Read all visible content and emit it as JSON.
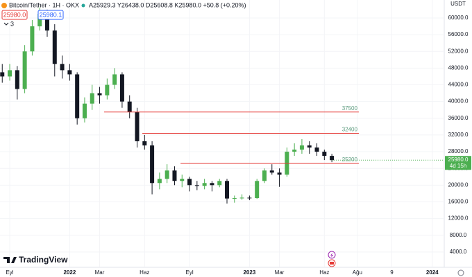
{
  "header": {
    "symbol": "Bitcoin/Tether · 1H · OKX",
    "ohlc": "A25929.3 Y26438.0 D25608.8 K25980.0 +50.8 (+0.20%)",
    "sell": "25980.0",
    "buy": "25980.1",
    "indicators": "3",
    "currency": "USDT",
    "brand": "TradingView"
  },
  "chart_data": {
    "type": "candlestick",
    "up_color": "#4caf50",
    "down_color": "#131722",
    "grid": true,
    "x": [
      -0.5,
      0,
      0.5,
      1,
      1.5,
      2,
      2.5,
      3,
      3.5,
      4,
      4.5,
      5,
      5.5,
      6,
      6.5,
      7,
      7.5,
      8,
      8.5,
      9,
      9.5,
      10,
      10.5,
      11,
      11.5,
      12,
      12.5,
      13,
      13.5,
      14,
      14.5,
      15,
      15.5,
      16,
      16.5,
      17,
      17.5,
      18,
      18.5,
      19,
      19.5,
      20,
      20.5,
      21,
      21.5
    ],
    "open": [
      47000,
      46000,
      47500,
      43000,
      52000,
      58000,
      61000,
      57000,
      49000,
      47500,
      46500,
      36000,
      39500,
      42000,
      41500,
      44000,
      46500,
      40000,
      37500,
      30500,
      29500,
      20500,
      21500,
      23500,
      21000,
      21500,
      20000,
      19800,
      20500,
      20000,
      21000,
      16800,
      16900,
      17000,
      16900,
      21000,
      23500,
      23000,
      22500,
      28000,
      28500,
      29500,
      29000,
      28000,
      27000
    ],
    "high": [
      49000,
      49000,
      48500,
      53500,
      59500,
      62500,
      62000,
      58500,
      51000,
      49000,
      47000,
      41000,
      44000,
      43500,
      45500,
      48000,
      47000,
      41500,
      38500,
      32000,
      30500,
      23000,
      25000,
      24500,
      22500,
      22000,
      21000,
      21500,
      21000,
      21500,
      21500,
      17500,
      17800,
      17500,
      21500,
      24000,
      25000,
      24000,
      29000,
      30000,
      31000,
      30500,
      30000,
      28500,
      27500
    ],
    "low": [
      44500,
      45000,
      40500,
      42000,
      51000,
      57000,
      55500,
      46000,
      45500,
      45000,
      34500,
      35000,
      38000,
      39500,
      40500,
      43000,
      38500,
      36000,
      29000,
      28500,
      17800,
      19000,
      20500,
      20000,
      19500,
      18500,
      18800,
      19000,
      18500,
      19500,
      15600,
      15800,
      16500,
      16400,
      16700,
      20500,
      22500,
      19600,
      22000,
      27000,
      27500,
      27500,
      27000,
      26000,
      25500
    ],
    "close": [
      46000,
      47500,
      43000,
      52000,
      58000,
      61000,
      57000,
      49000,
      47500,
      46500,
      36000,
      39500,
      42000,
      41500,
      44000,
      46500,
      40000,
      37500,
      30500,
      29500,
      20500,
      21500,
      23500,
      21000,
      21500,
      20000,
      19800,
      20500,
      20000,
      21000,
      16800,
      16900,
      17000,
      16900,
      21000,
      23500,
      23000,
      22500,
      28000,
      28500,
      29500,
      29000,
      28000,
      27000,
      25980
    ],
    "xlim": [
      -0.65,
      29
    ],
    "ylim": [
      500,
      64300
    ],
    "xticks": [
      {
        "value": 0,
        "label": "Eyl"
      },
      {
        "value": 4,
        "label": "2022"
      },
      {
        "value": 6,
        "label": "Mar"
      },
      {
        "value": 9,
        "label": "Haz"
      },
      {
        "value": 12,
        "label": "Eyl"
      },
      {
        "value": 16,
        "label": "2023"
      },
      {
        "value": 18,
        "label": "Mar"
      },
      {
        "value": 21,
        "label": "Haz"
      },
      {
        "value": 23.2,
        "label": "Ağu"
      },
      {
        "value": 25.5,
        "label": "9"
      },
      {
        "value": 28.2,
        "label": "2024"
      }
    ],
    "yticks": [
      {
        "value": 4000,
        "label": "4000.0"
      },
      {
        "value": 8000,
        "label": "8000.0"
      },
      {
        "value": 12000,
        "label": "12000.0"
      },
      {
        "value": 16000,
        "label": "16000.0"
      },
      {
        "value": 20000,
        "label": "20000.0"
      },
      {
        "value": 24000,
        "label": "24000.0"
      },
      {
        "value": 28000,
        "label": "28000.0"
      },
      {
        "value": 32000,
        "label": "32000.0"
      },
      {
        "value": 36000,
        "label": "36000.0"
      },
      {
        "value": 40000,
        "label": "40000.0"
      },
      {
        "value": 44000,
        "label": "44000.0"
      },
      {
        "value": 48000,
        "label": "48000.0"
      },
      {
        "value": 52000,
        "label": "52000.0"
      },
      {
        "value": 56000,
        "label": "56000.0"
      },
      {
        "value": 60000,
        "label": "60000.0"
      }
    ],
    "hlines": [
      {
        "value": 37500,
        "x": [
          6.3,
          23.3
        ]
      },
      {
        "value": 32400,
        "x": [
          8.85,
          23.3
        ]
      },
      {
        "value": 25200,
        "x": [
          11.4,
          23.3
        ]
      }
    ],
    "hline_color": "#e53935",
    "last_price": {
      "value": 25980,
      "label": "25980.0"
    },
    "countdown": "4d 15h"
  }
}
